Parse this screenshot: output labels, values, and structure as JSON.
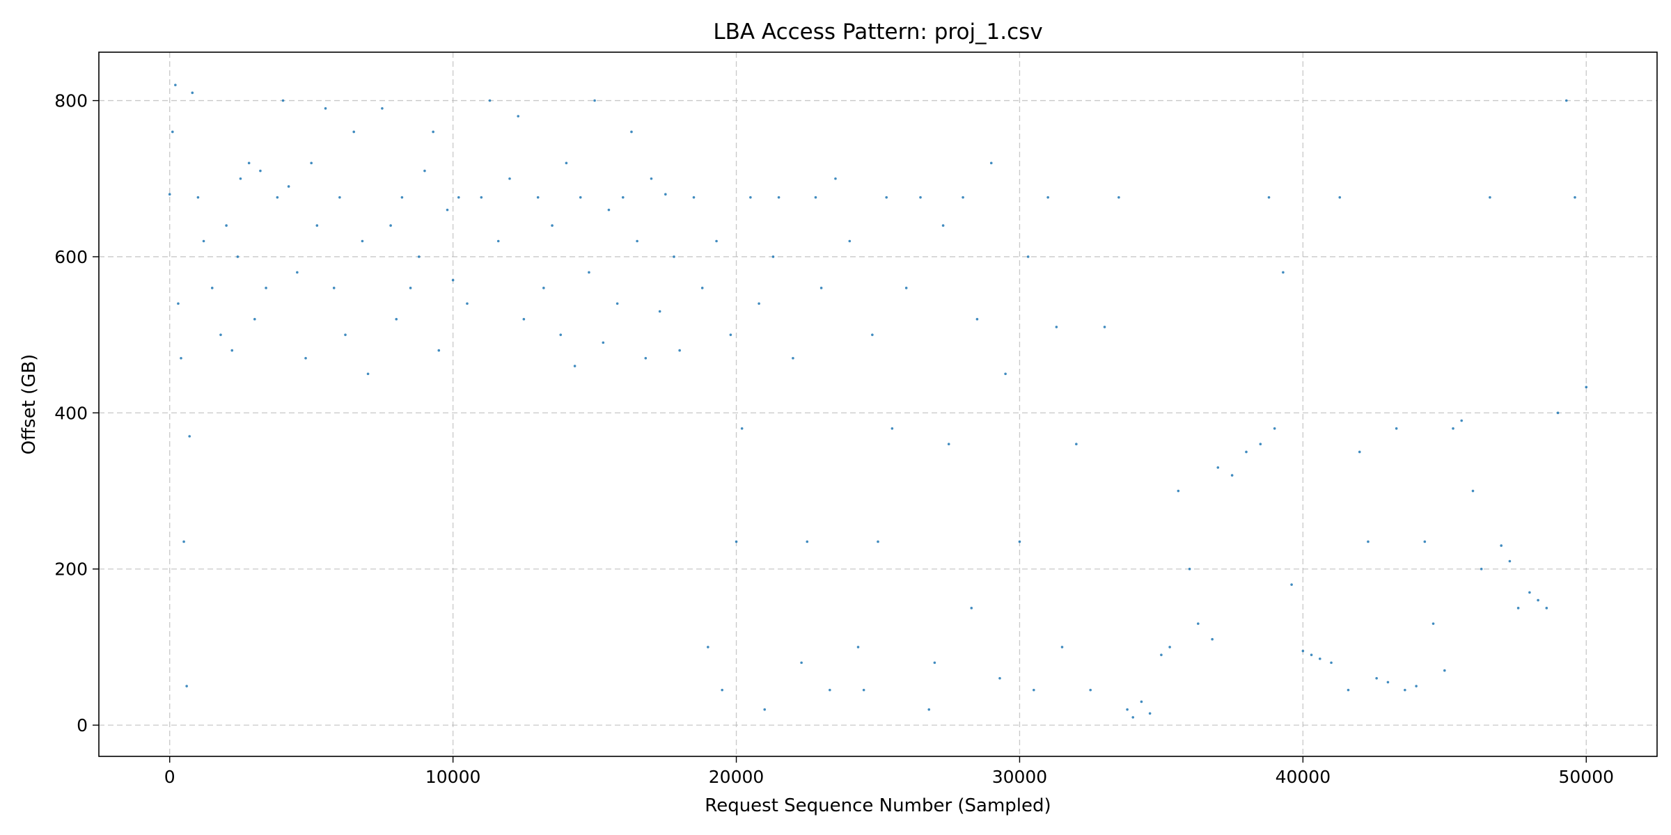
{
  "chart_data": {
    "type": "scatter",
    "title": "LBA Access Pattern: proj_1.csv",
    "xlabel": "Request Sequence Number (Sampled)",
    "ylabel": "Offset (GB)",
    "xlim": [
      -2500,
      52500
    ],
    "ylim": [
      -40,
      862
    ],
    "xticks": [
      0,
      10000,
      20000,
      30000,
      40000,
      50000
    ],
    "xtick_labels": [
      "0",
      "10000",
      "20000",
      "30000",
      "40000",
      "50000"
    ],
    "yticks": [
      0,
      200,
      400,
      600,
      800
    ],
    "ytick_labels": [
      "0",
      "200",
      "400",
      "600",
      "800"
    ],
    "grid": true,
    "grid_style": "dashed",
    "legend": "none",
    "color": "#1f77b4",
    "series": [
      {
        "values": [
          [
            0,
            680
          ],
          [
            100,
            760
          ],
          [
            200,
            820
          ],
          [
            300,
            540
          ],
          [
            400,
            470
          ],
          [
            500,
            235
          ],
          [
            600,
            50
          ],
          [
            700,
            370
          ],
          [
            800,
            810
          ],
          [
            1000,
            676
          ],
          [
            1200,
            620
          ],
          [
            1500,
            560
          ],
          [
            1800,
            500
          ],
          [
            2000,
            640
          ],
          [
            2200,
            480
          ],
          [
            2400,
            600
          ],
          [
            2500,
            700
          ],
          [
            2800,
            720
          ],
          [
            3000,
            520
          ],
          [
            3200,
            710
          ],
          [
            3400,
            560
          ],
          [
            3800,
            676
          ],
          [
            4000,
            800
          ],
          [
            4200,
            690
          ],
          [
            4500,
            580
          ],
          [
            4800,
            470
          ],
          [
            5000,
            720
          ],
          [
            5200,
            640
          ],
          [
            5500,
            790
          ],
          [
            5800,
            560
          ],
          [
            6000,
            676
          ],
          [
            6200,
            500
          ],
          [
            6500,
            760
          ],
          [
            6800,
            620
          ],
          [
            7000,
            450
          ],
          [
            7500,
            790
          ],
          [
            7800,
            640
          ],
          [
            8000,
            520
          ],
          [
            8200,
            676
          ],
          [
            8500,
            560
          ],
          [
            8800,
            600
          ],
          [
            9000,
            710
          ],
          [
            9300,
            760
          ],
          [
            9500,
            480
          ],
          [
            9800,
            660
          ],
          [
            10000,
            570
          ],
          [
            10200,
            676
          ],
          [
            10500,
            540
          ],
          [
            11000,
            676
          ],
          [
            11300,
            800
          ],
          [
            11600,
            620
          ],
          [
            12000,
            700
          ],
          [
            12300,
            780
          ],
          [
            12500,
            520
          ],
          [
            13000,
            676
          ],
          [
            13200,
            560
          ],
          [
            13500,
            640
          ],
          [
            13800,
            500
          ],
          [
            14000,
            720
          ],
          [
            14300,
            460
          ],
          [
            14500,
            676
          ],
          [
            14800,
            580
          ],
          [
            15000,
            800
          ],
          [
            15300,
            490
          ],
          [
            15500,
            660
          ],
          [
            15800,
            540
          ],
          [
            16000,
            676
          ],
          [
            16300,
            760
          ],
          [
            16500,
            620
          ],
          [
            16800,
            470
          ],
          [
            17000,
            700
          ],
          [
            17300,
            530
          ],
          [
            17500,
            680
          ],
          [
            17800,
            600
          ],
          [
            18000,
            480
          ],
          [
            18500,
            676
          ],
          [
            18800,
            560
          ],
          [
            19000,
            100
          ],
          [
            19300,
            620
          ],
          [
            19500,
            45
          ],
          [
            19800,
            500
          ],
          [
            20000,
            235
          ],
          [
            20200,
            380
          ],
          [
            20500,
            676
          ],
          [
            20800,
            540
          ],
          [
            21000,
            20
          ],
          [
            21300,
            600
          ],
          [
            21500,
            676
          ],
          [
            22000,
            470
          ],
          [
            22300,
            80
          ],
          [
            22500,
            235
          ],
          [
            22800,
            676
          ],
          [
            23000,
            560
          ],
          [
            23300,
            45
          ],
          [
            23500,
            700
          ],
          [
            24000,
            620
          ],
          [
            24300,
            100
          ],
          [
            24500,
            45
          ],
          [
            24800,
            500
          ],
          [
            25000,
            235
          ],
          [
            25300,
            676
          ],
          [
            25500,
            380
          ],
          [
            26000,
            560
          ],
          [
            26500,
            676
          ],
          [
            26800,
            20
          ],
          [
            27000,
            80
          ],
          [
            27300,
            640
          ],
          [
            27500,
            360
          ],
          [
            28000,
            676
          ],
          [
            28300,
            150
          ],
          [
            28500,
            520
          ],
          [
            29000,
            720
          ],
          [
            29300,
            60
          ],
          [
            29500,
            450
          ],
          [
            30000,
            235
          ],
          [
            30300,
            600
          ],
          [
            30500,
            45
          ],
          [
            31000,
            676
          ],
          [
            31300,
            510
          ],
          [
            31500,
            100
          ],
          [
            32000,
            360
          ],
          [
            32500,
            45
          ],
          [
            33000,
            510
          ],
          [
            33500,
            676
          ],
          [
            33800,
            20
          ],
          [
            34000,
            10
          ],
          [
            34300,
            30
          ],
          [
            34600,
            15
          ],
          [
            35000,
            90
          ],
          [
            35300,
            100
          ],
          [
            35600,
            300
          ],
          [
            36000,
            200
          ],
          [
            36300,
            130
          ],
          [
            36800,
            110
          ],
          [
            37000,
            330
          ],
          [
            37500,
            320
          ],
          [
            38000,
            350
          ],
          [
            38500,
            360
          ],
          [
            38800,
            676
          ],
          [
            39000,
            380
          ],
          [
            39300,
            580
          ],
          [
            39600,
            180
          ],
          [
            40000,
            95
          ],
          [
            40300,
            90
          ],
          [
            40600,
            85
          ],
          [
            41000,
            80
          ],
          [
            41300,
            676
          ],
          [
            41600,
            45
          ],
          [
            42000,
            350
          ],
          [
            42300,
            235
          ],
          [
            42600,
            60
          ],
          [
            43000,
            55
          ],
          [
            43300,
            380
          ],
          [
            43600,
            45
          ],
          [
            44000,
            50
          ],
          [
            44300,
            235
          ],
          [
            44600,
            130
          ],
          [
            45000,
            70
          ],
          [
            45300,
            380
          ],
          [
            45600,
            390
          ],
          [
            46000,
            300
          ],
          [
            46300,
            200
          ],
          [
            46600,
            676
          ],
          [
            47000,
            230
          ],
          [
            47300,
            210
          ],
          [
            47600,
            150
          ],
          [
            48000,
            170
          ],
          [
            48300,
            160
          ],
          [
            48600,
            150
          ],
          [
            49000,
            400
          ],
          [
            49300,
            800
          ],
          [
            49600,
            676
          ],
          [
            50000,
            433
          ]
        ]
      }
    ]
  }
}
